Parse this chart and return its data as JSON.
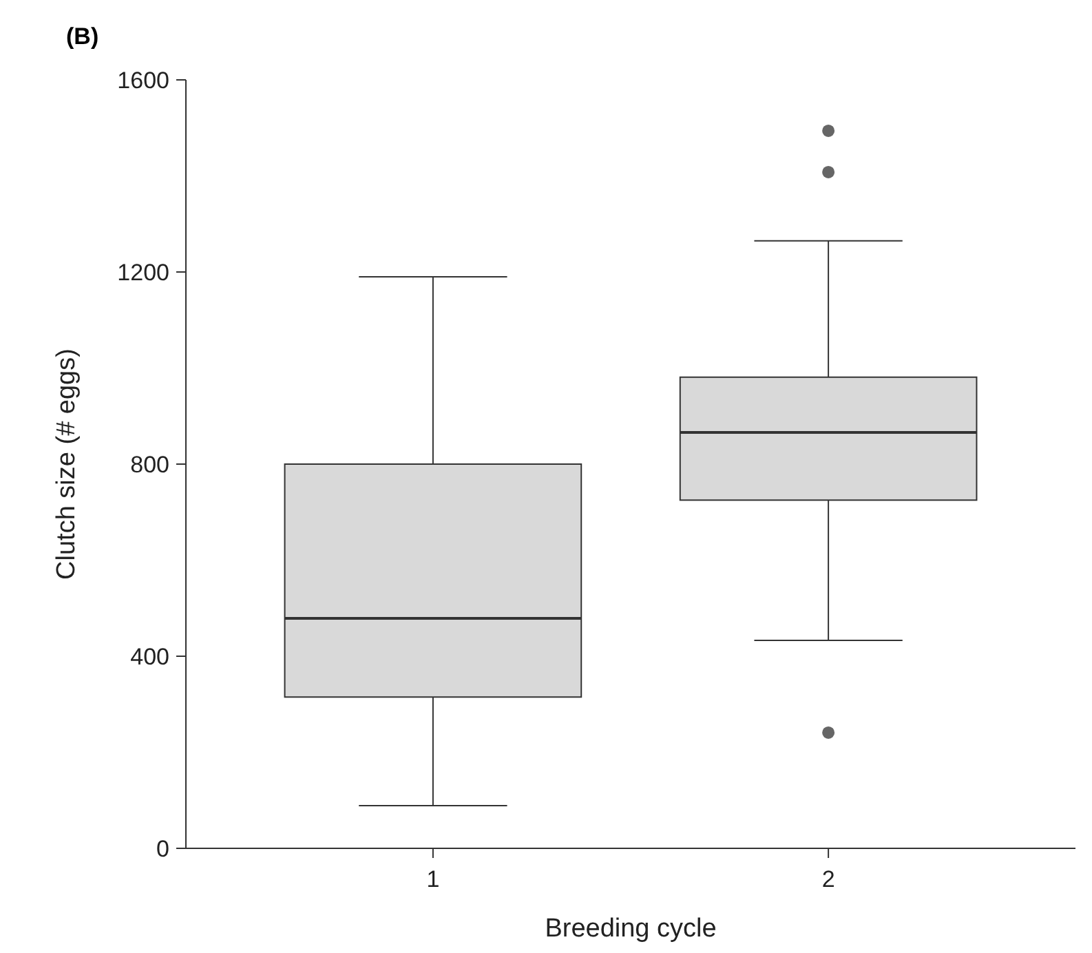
{
  "chart_data": {
    "type": "box",
    "title": "(B)",
    "xlabel": "Breeding cycle",
    "ylabel": "Clutch size (# eggs)",
    "categories": [
      "1",
      "2"
    ],
    "ylim": [
      0,
      1600
    ],
    "yticks": [
      0,
      400,
      800,
      1200,
      1600
    ],
    "grid": false,
    "color": "#d9d9d9",
    "boxes": [
      {
        "low": 89,
        "q1": 315,
        "median": 479,
        "q3": 800,
        "high": 1190
      },
      {
        "low": 433,
        "q1": 725,
        "median": 866,
        "q3": 981,
        "high": 1265,
        "outliers": [
          1494,
          1408,
          241
        ]
      }
    ]
  }
}
